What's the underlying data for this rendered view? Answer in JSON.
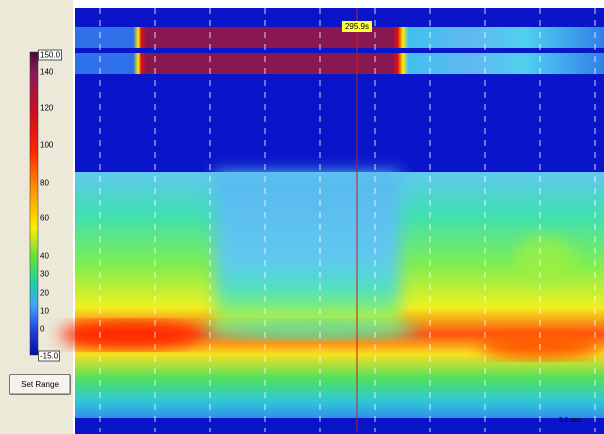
{
  "colorbar": {
    "labels": [
      "150.0",
      "140",
      "120",
      "100",
      "80",
      "60",
      "40",
      "30",
      "20",
      "10",
      "0",
      "-15.0"
    ]
  },
  "cursor": {
    "label": "295.9s"
  },
  "button": {
    "label": "Set Range"
  },
  "scale": {
    "label": "3.0 sec"
  }
}
